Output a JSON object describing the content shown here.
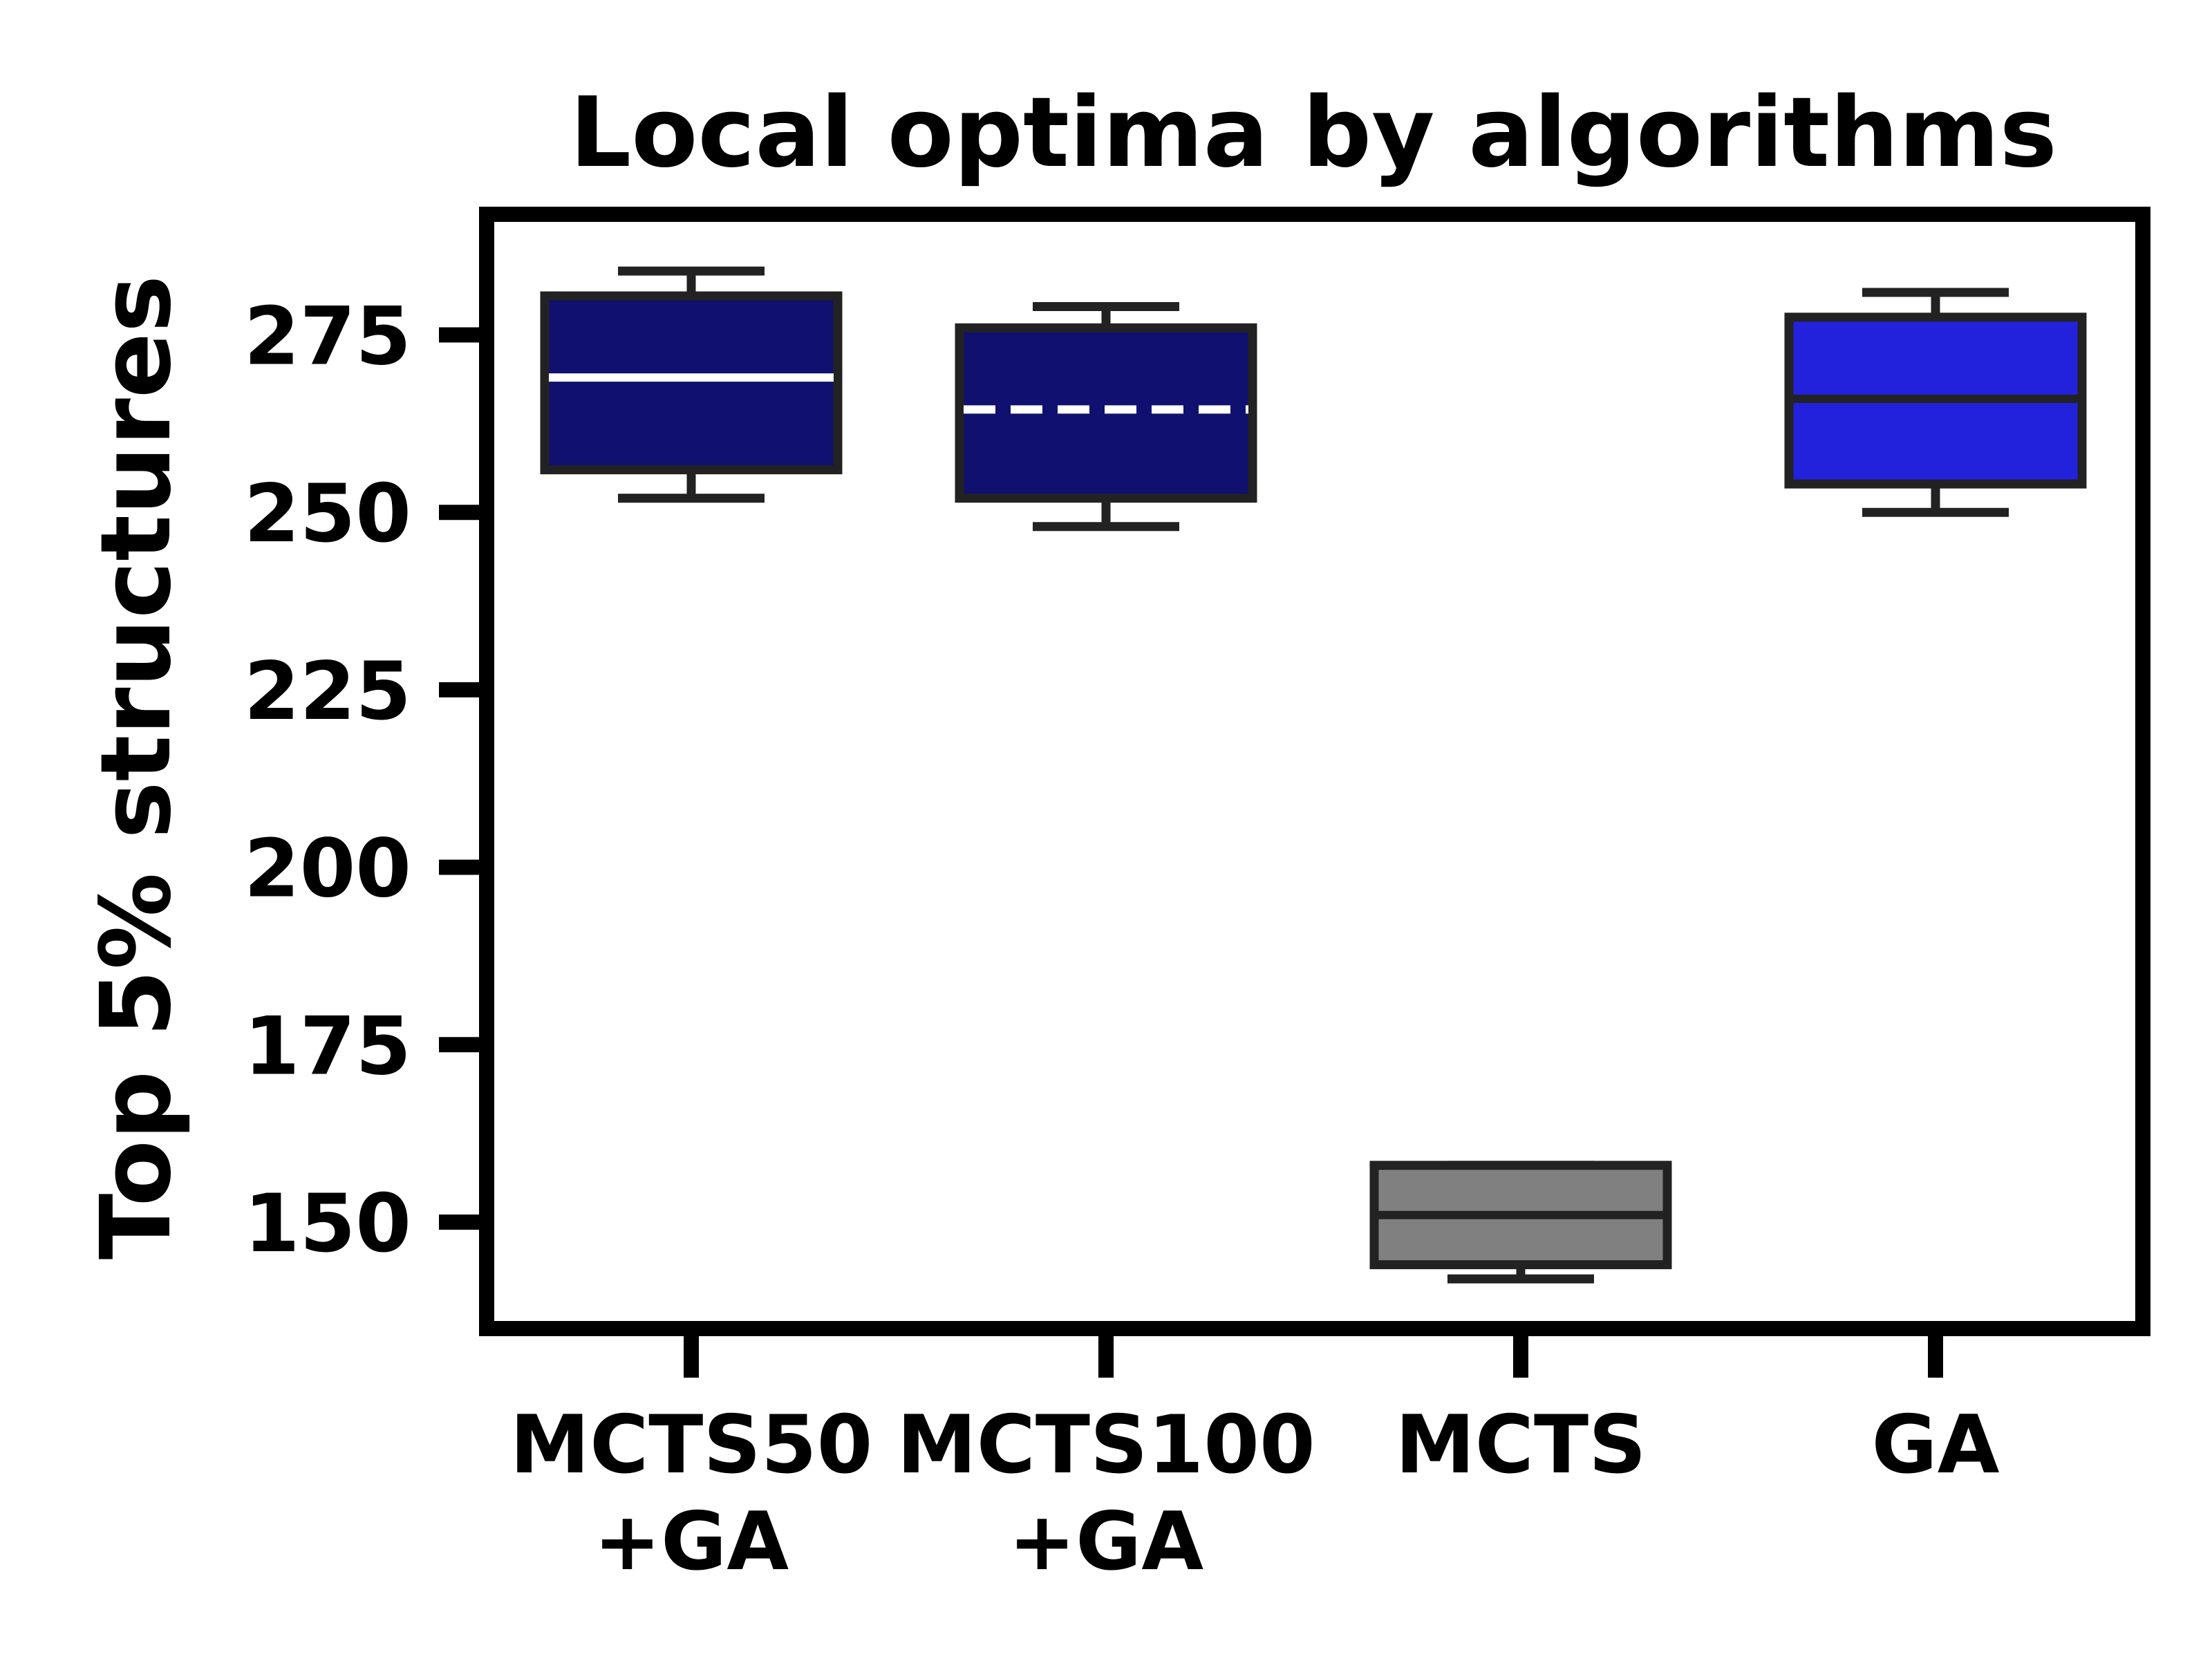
{
  "chart_data": {
    "type": "box",
    "title": "Local optima by algorithms",
    "xlabel": "",
    "ylabel": "Top 5% structures",
    "ylim": [
      135,
      292
    ],
    "yticks": [
      150,
      175,
      200,
      225,
      250,
      275
    ],
    "grid": false,
    "legend": "none",
    "categories": [
      {
        "label_lines": [
          "MCTS50",
          "+GA"
        ],
        "whisker_low": 252,
        "q1": 256,
        "median": 269,
        "q3": 280.5,
        "whisker_high": 284,
        "color": "#101070",
        "median_color": "#ffffff",
        "median_style": "solid"
      },
      {
        "label_lines": [
          "MCTS100",
          "+GA"
        ],
        "whisker_low": 248,
        "q1": 252,
        "median": 264.5,
        "q3": 276,
        "whisker_high": 279,
        "color": "#101070",
        "median_color": "#ffffff",
        "median_style": "dashed"
      },
      {
        "label_lines": [
          "MCTS"
        ],
        "whisker_low": 142,
        "q1": 144,
        "median": 151,
        "q3": 158,
        "whisker_high": 158,
        "color": "#808080",
        "median_color": "#222222",
        "median_style": "solid"
      },
      {
        "label_lines": [
          "GA"
        ],
        "whisker_low": 250,
        "q1": 254,
        "median": 266,
        "q3": 277.5,
        "whisker_high": 281,
        "color": "#2222dd",
        "median_color": "#222222",
        "median_style": "solid"
      }
    ]
  }
}
